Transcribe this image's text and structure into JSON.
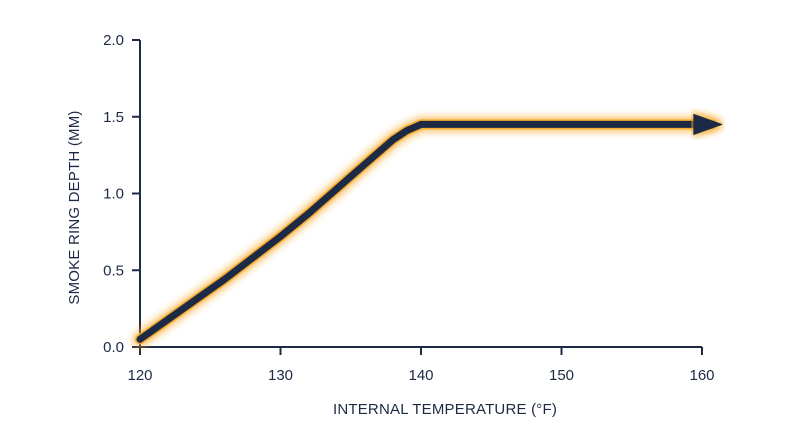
{
  "chart_data": {
    "type": "line",
    "title": "",
    "xlabel": "INTERNAL TEMPERATURE (°F)",
    "ylabel": "SMOKE RING DEPTH (MM)",
    "xlim": [
      120,
      160
    ],
    "ylim": [
      0,
      2.0
    ],
    "xticks": [
      "120",
      "130",
      "140",
      "150",
      "160"
    ],
    "yticks": [
      "0.0",
      "0.5",
      "1.0",
      "1.5",
      "2.0"
    ],
    "grid": false,
    "legend": "none",
    "series": [
      {
        "x": [
          120,
          122,
          124,
          126,
          128,
          130,
          132,
          134,
          136,
          138,
          139,
          140,
          145,
          150,
          155,
          160,
          160.7
        ],
        "y": [
          0.05,
          0.18,
          0.31,
          0.44,
          0.58,
          0.72,
          0.87,
          1.03,
          1.19,
          1.35,
          1.41,
          1.45,
          1.45,
          1.45,
          1.45,
          1.45,
          1.45
        ],
        "end_marker": "arrow"
      }
    ],
    "colors": {
      "line": "#1c2a45",
      "glow": "#f5a623",
      "axis": "#1c2a45",
      "text": "#1c2a45"
    }
  }
}
